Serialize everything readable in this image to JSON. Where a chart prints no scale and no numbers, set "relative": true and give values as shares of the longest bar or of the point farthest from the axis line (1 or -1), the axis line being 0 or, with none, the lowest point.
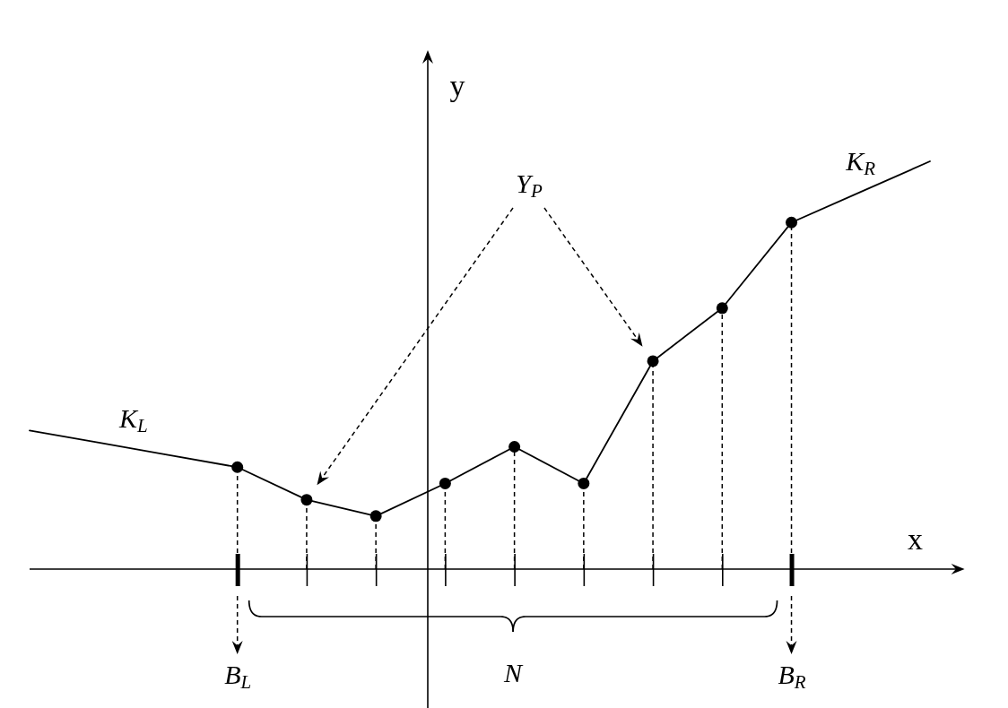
{
  "chart_data": {
    "type": "line",
    "relative": true,
    "xlabel": "x",
    "ylabel": "y",
    "categories": [
      null,
      null,
      null,
      "B$_{L}$",
      null,
      null,
      null,
      null,
      null,
      null,
      null,
      "B$_{R}$",
      null,
      null
    ],
    "tick_labels": "x",
    "annotations": [
      "Y$_{P}$",
      "N"
    ],
    "series": [
      {
        "name": "K$_{L}$",
        "color": "#000000",
        "values": [
          0.34,
          0.31,
          0.28,
          0.25,
          null,
          null,
          null,
          null,
          null,
          null,
          null,
          null,
          null,
          null
        ]
      },
      {
        "color": "#000000",
        "values": [
          null,
          null,
          null,
          0.25,
          0.17,
          0.13,
          0.21,
          0.3,
          0.21,
          0.51,
          0.64,
          0.85,
          null,
          null
        ]
      },
      {
        "type": "lollipop",
        "color": "#000000",
        "line_style": "dashed",
        "marker": "circle",
        "values": [
          null,
          null,
          null,
          0.25,
          0.17,
          0.13,
          0.21,
          0.3,
          0.21,
          0.51,
          0.64,
          0.85,
          null,
          null
        ]
      },
      {
        "name": "K$_{R}$",
        "color": "#000000",
        "values": [
          null,
          null,
          null,
          null,
          null,
          null,
          null,
          null,
          null,
          null,
          null,
          0.85,
          0.925,
          1.0
        ]
      }
    ]
  }
}
